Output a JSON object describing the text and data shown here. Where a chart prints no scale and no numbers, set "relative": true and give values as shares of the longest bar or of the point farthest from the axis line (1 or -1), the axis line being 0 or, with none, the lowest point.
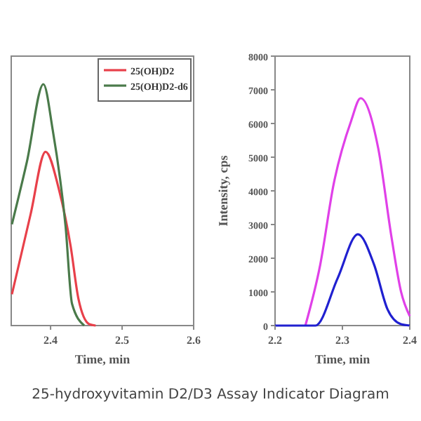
{
  "chart_data": [
    {
      "type": "line",
      "xlabel": "Time, min",
      "relative": true,
      "xlim": [
        2.345,
        2.6
      ],
      "xticks": [
        2.4,
        2.5,
        2.6
      ],
      "legend": "top right",
      "annotations": [
        "25-hydroxyvitamin D2/D3 Assay Indicator Diagram"
      ],
      "series": [
        {
          "name": "25(OH)D2",
          "color": "#e8404a",
          "x": [
            2.346,
            2.372,
            2.393,
            2.412,
            2.428,
            2.439,
            2.454,
            2.463
          ],
          "values": [
            0.13,
            0.46,
            0.72,
            0.56,
            0.33,
            0.11,
            0.006,
            0
          ]
        },
        {
          "name": "25(OH)D2-d6",
          "color": "#4a7a4a",
          "x": [
            2.346,
            2.367,
            2.39,
            2.403,
            2.421,
            2.43,
            2.447
          ],
          "values": [
            0.42,
            0.68,
            1,
            0.81,
            0.41,
            0.09,
            0
          ]
        }
      ]
    },
    {
      "type": "line",
      "xlabel": "Time, min",
      "ylabel": "Intensity, cps",
      "xlim": [
        2.2,
        2.4
      ],
      "xticks": [
        2.2,
        2.3,
        2.4
      ],
      "ylim": [
        0,
        8000
      ],
      "yticks": [
        0,
        1000,
        2000,
        3000,
        4000,
        5000,
        6000,
        7000,
        8000
      ],
      "series": [
        {
          "color": "#e040e8",
          "x": [
            2.245,
            2.267,
            2.287,
            2.313,
            2.327,
            2.353,
            2.373,
            2.387,
            2.4
          ],
          "values": [
            0,
            1800,
            4200,
            6080,
            6750,
            5280,
            2610,
            1010,
            280
          ]
        },
        {
          "color": "#2020d0",
          "x": [
            2.2,
            2.26,
            2.293,
            2.323,
            2.347,
            2.367,
            2.387,
            2.4
          ],
          "values": [
            0,
            0,
            1410,
            2710,
            1810,
            480,
            40,
            0
          ]
        }
      ]
    }
  ]
}
